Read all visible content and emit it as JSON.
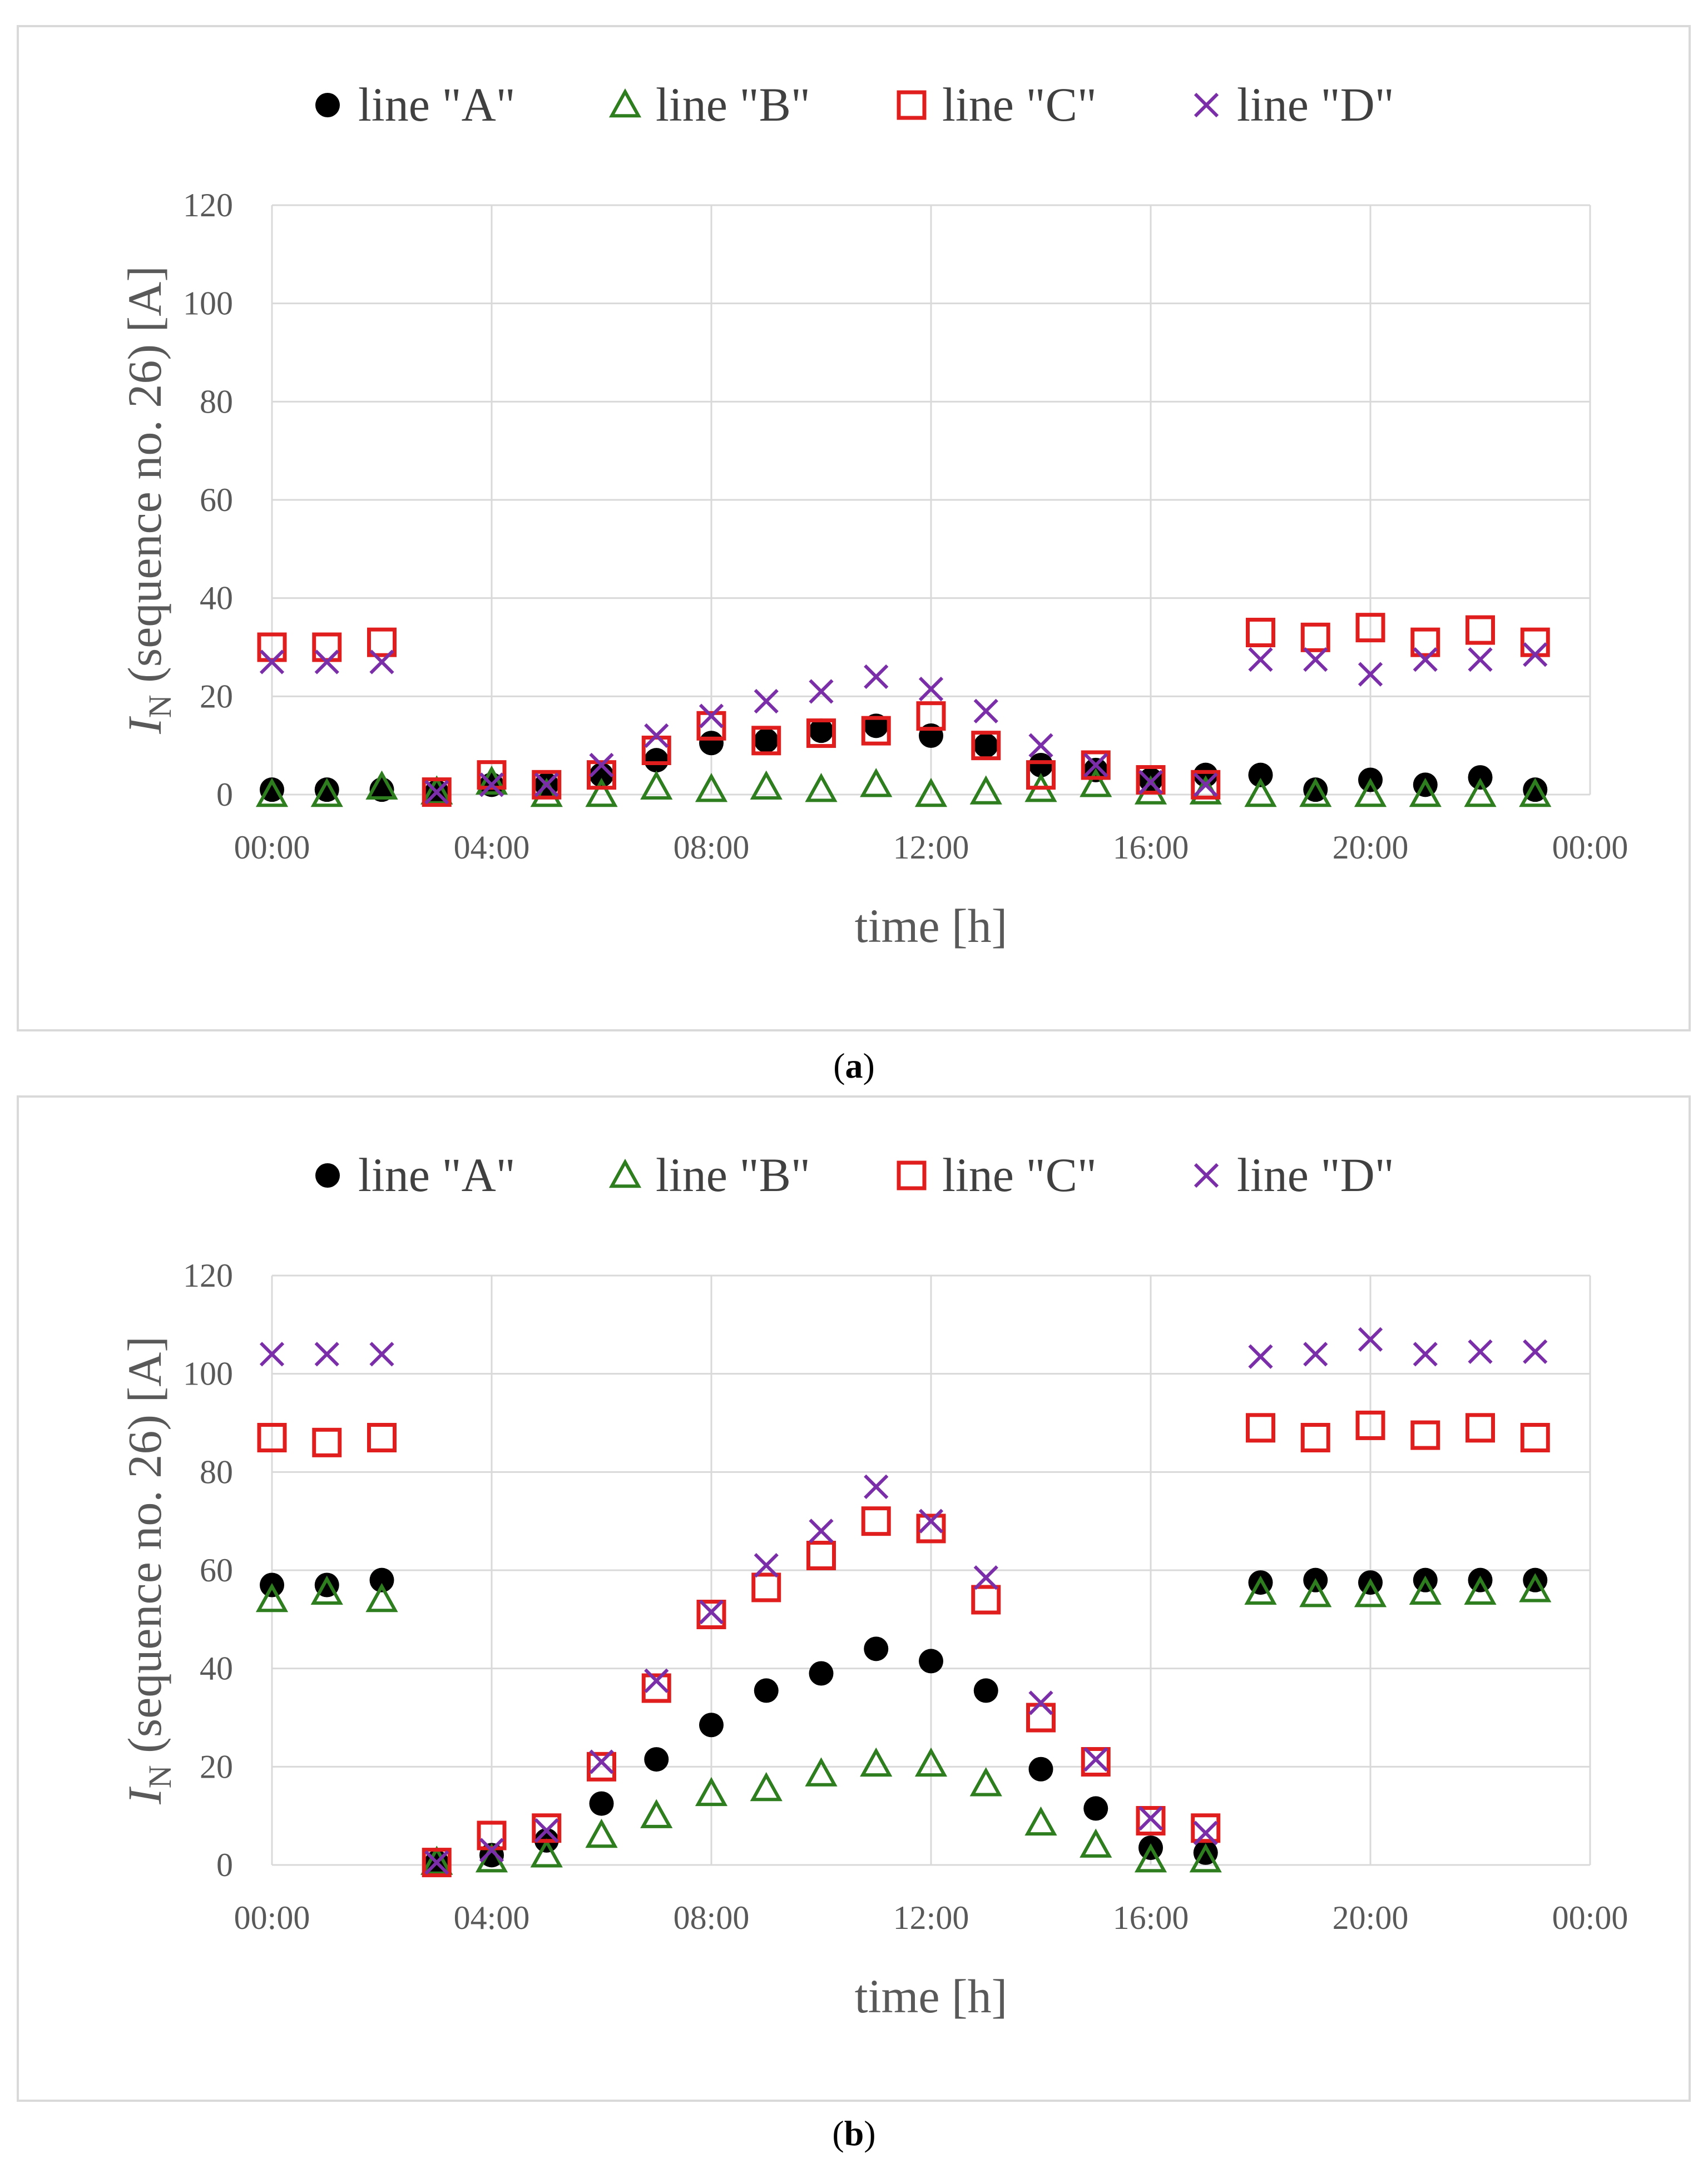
{
  "figure": {
    "panels": [
      {
        "id": "a",
        "caption_letter": "a"
      },
      {
        "id": "b",
        "caption_letter": "b"
      }
    ]
  },
  "chart_data": [
    {
      "type": "scatter",
      "title": "",
      "xlabel": "time [h]",
      "ylabel_main": "I",
      "ylabel_sub": "N",
      "ylabel_rest": " (sequence no. 26) [A]",
      "xlim": [
        0,
        24
      ],
      "ylim": [
        0,
        120
      ],
      "xticks": [
        0,
        4,
        8,
        12,
        16,
        20,
        24
      ],
      "xtick_labels": [
        "00:00",
        "04:00",
        "08:00",
        "12:00",
        "16:00",
        "20:00",
        "00:00"
      ],
      "yticks": [
        0,
        20,
        40,
        60,
        80,
        100,
        120
      ],
      "ytick_labels": [
        "0",
        "20",
        "40",
        "60",
        "80",
        "100",
        "120"
      ],
      "grid": true,
      "legend_position": "top",
      "x": [
        0,
        1,
        2,
        3,
        4,
        5,
        6,
        7,
        8,
        9,
        10,
        11,
        12,
        13,
        14,
        15,
        16,
        17,
        18,
        19,
        20,
        21,
        22,
        23
      ],
      "series": [
        {
          "name": "line \"A\"",
          "marker": "circle",
          "color": "#000000",
          "values": [
            1,
            1,
            1,
            0.5,
            2,
            2,
            4,
            7,
            10.5,
            11,
            13,
            14,
            12,
            10,
            6,
            5,
            3,
            4,
            4,
            1,
            3,
            2,
            3.5,
            1
          ]
        },
        {
          "name": "line \"B\"",
          "marker": "triangle",
          "color": "#2e7d1e",
          "values": [
            0,
            0,
            1.5,
            0.5,
            2.5,
            0,
            0,
            1.5,
            1,
            1.5,
            1,
            2,
            0,
            0.5,
            1,
            2,
            0.5,
            0.5,
            0,
            0,
            0,
            0,
            0,
            0
          ]
        },
        {
          "name": "line \"C\"",
          "marker": "square",
          "color": "#e01e1e",
          "values": [
            30,
            30,
            31,
            0.5,
            4,
            2,
            4,
            9,
            14,
            11,
            12.5,
            13,
            16,
            10,
            4,
            6,
            3,
            2,
            33,
            32,
            34,
            31,
            33.5,
            31
          ]
        },
        {
          "name": "line \"D\"",
          "marker": "x",
          "color": "#7a2fa8",
          "values": [
            27,
            27,
            27,
            0.5,
            2,
            2,
            6,
            12,
            16,
            19,
            21,
            24,
            21.5,
            17,
            10,
            6,
            2.5,
            2,
            27.5,
            27.5,
            24.5,
            27.5,
            27.5,
            28.5
          ]
        }
      ]
    },
    {
      "type": "scatter",
      "title": "",
      "xlabel": "time [h]",
      "ylabel_main": "I",
      "ylabel_sub": "N",
      "ylabel_rest": " (sequence no. 26) [A]",
      "xlim": [
        0,
        24
      ],
      "ylim": [
        0,
        120
      ],
      "xticks": [
        0,
        4,
        8,
        12,
        16,
        20,
        24
      ],
      "xtick_labels": [
        "00:00",
        "04:00",
        "08:00",
        "12:00",
        "16:00",
        "20:00",
        "00:00"
      ],
      "yticks": [
        0,
        20,
        40,
        60,
        80,
        100,
        120
      ],
      "ytick_labels": [
        "0",
        "20",
        "40",
        "60",
        "80",
        "100",
        "120"
      ],
      "grid": true,
      "legend_position": "top",
      "x": [
        0,
        1,
        2,
        3,
        4,
        5,
        6,
        7,
        8,
        9,
        10,
        11,
        12,
        13,
        14,
        15,
        16,
        17,
        18,
        19,
        20,
        21,
        22,
        23
      ],
      "series": [
        {
          "name": "line \"A\"",
          "marker": "circle",
          "color": "#000000",
          "values": [
            57,
            57,
            58,
            0.5,
            2,
            5,
            12.5,
            21.5,
            28.5,
            35.5,
            39,
            44,
            41.5,
            35.5,
            19.5,
            11.5,
            3.5,
            2.5,
            57.5,
            58,
            57.5,
            58,
            58,
            58
          ]
        },
        {
          "name": "line \"B\"",
          "marker": "triangle",
          "color": "#2e7d1e",
          "values": [
            54,
            55.5,
            54,
            0.5,
            1,
            2,
            6,
            10,
            14.5,
            15.5,
            18.5,
            20.5,
            20.5,
            16.5,
            8.5,
            4,
            1,
            1,
            55.5,
            55,
            55,
            55.5,
            55.5,
            56
          ]
        },
        {
          "name": "line \"C\"",
          "marker": "square",
          "color": "#e01e1e",
          "values": [
            87,
            86,
            87,
            0.5,
            6,
            7.5,
            20,
            36,
            51,
            56.5,
            63,
            70,
            68.5,
            54,
            30,
            21,
            9,
            7.5,
            89,
            87,
            89.5,
            87.5,
            89,
            87
          ]
        },
        {
          "name": "line \"D\"",
          "marker": "x",
          "color": "#7a2fa8",
          "values": [
            104,
            104,
            104,
            0.5,
            3,
            7,
            21,
            37.5,
            51.5,
            61,
            68,
            77,
            70,
            58.5,
            33,
            21.5,
            9.5,
            6.5,
            103.5,
            104,
            107,
            104,
            104.5,
            104.5
          ]
        }
      ]
    }
  ]
}
